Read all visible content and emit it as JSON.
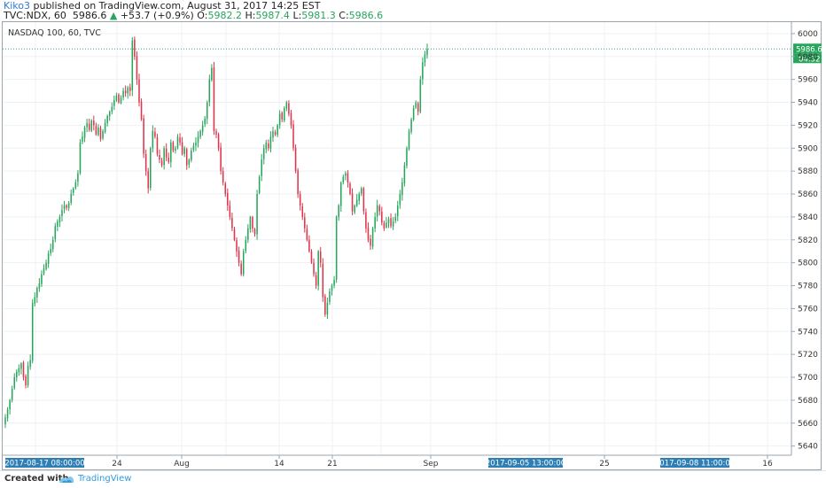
{
  "header": {
    "author": "Kiko3",
    "published_text": "published on TradingView.com, August 31, 2017 14:25 EST",
    "symbol": "TVC:NDX, 60",
    "last": "5986.6",
    "change": "+53.7 (+0.9%)",
    "o_label": "O:",
    "o": "5982.2",
    "h_label": "H:",
    "h": "5987.4",
    "l_label": "L:",
    "l": "5981.3",
    "c_label": "C:",
    "c": "5986.6"
  },
  "footer": {
    "created_with": "Created with",
    "brand": "TradingView"
  },
  "colors": {
    "up": "#26a65b",
    "down": "#e0344b",
    "axis_label_bg": "#2f7fb5",
    "price_line": "#3a9f9f",
    "grid": "#eef1f3"
  },
  "chart_data": {
    "type": "candlestick",
    "title": "NASDAQ 100, 60, TVC",
    "ylim": [
      5632,
      6010
    ],
    "y_ticks": [
      5640,
      5660,
      5680,
      5700,
      5720,
      5740,
      5760,
      5780,
      5800,
      5820,
      5840,
      5860,
      5880,
      5900,
      5920,
      5940,
      5960,
      5980,
      6000
    ],
    "x_ticks": [
      "24",
      "Aug",
      "14",
      "21",
      "Sep",
      "25",
      "16"
    ],
    "x_axis_highlights": [
      "2017-08-17 08:00:00",
      "2017-09-05 13:00:00",
      "2017-09-08 11:00:00"
    ],
    "price_label": "5986.6",
    "countdown_label": "04:52",
    "grid": true,
    "closes": [
      5665,
      5672,
      5680,
      5690,
      5700,
      5705,
      5708,
      5712,
      5700,
      5693,
      5710,
      5715,
      5765,
      5770,
      5778,
      5782,
      5790,
      5795,
      5800,
      5808,
      5812,
      5820,
      5832,
      5836,
      5840,
      5846,
      5850,
      5848,
      5852,
      5860,
      5865,
      5870,
      5878,
      5905,
      5910,
      5918,
      5922,
      5916,
      5924,
      5920,
      5912,
      5918,
      5908,
      5915,
      5922,
      5928,
      5932,
      5936,
      5942,
      5946,
      5940,
      5944,
      5950,
      5948,
      5953,
      5950,
      5994,
      5980,
      5960,
      5940,
      5925,
      5895,
      5880,
      5865,
      5900,
      5915,
      5910,
      5895,
      5890,
      5885,
      5900,
      5892,
      5888,
      5905,
      5898,
      5900,
      5910,
      5905,
      5895,
      5900,
      5885,
      5890,
      5898,
      5902,
      5905,
      5910,
      5915,
      5920,
      5926,
      5940,
      5960,
      5970,
      5915,
      5912,
      5900,
      5880,
      5870,
      5860,
      5850,
      5840,
      5830,
      5820,
      5810,
      5800,
      5790,
      5810,
      5820,
      5830,
      5840,
      5830,
      5825,
      5860,
      5875,
      5890,
      5900,
      5905,
      5900,
      5910,
      5915,
      5912,
      5920,
      5930,
      5925,
      5935,
      5940,
      5930,
      5920,
      5900,
      5880,
      5860,
      5850,
      5840,
      5830,
      5820,
      5810,
      5800,
      5790,
      5780,
      5810,
      5800,
      5770,
      5755,
      5765,
      5775,
      5780,
      5785,
      5840,
      5850,
      5870,
      5875,
      5878,
      5870,
      5860,
      5845,
      5850,
      5855,
      5860,
      5865,
      5845,
      5830,
      5820,
      5815,
      5830,
      5840,
      5850,
      5845,
      5835,
      5830,
      5835,
      5838,
      5832,
      5836,
      5840,
      5850,
      5860,
      5870,
      5885,
      5900,
      5915,
      5925,
      5935,
      5940,
      5932,
      5960,
      5975,
      5982,
      5986.6
    ]
  }
}
